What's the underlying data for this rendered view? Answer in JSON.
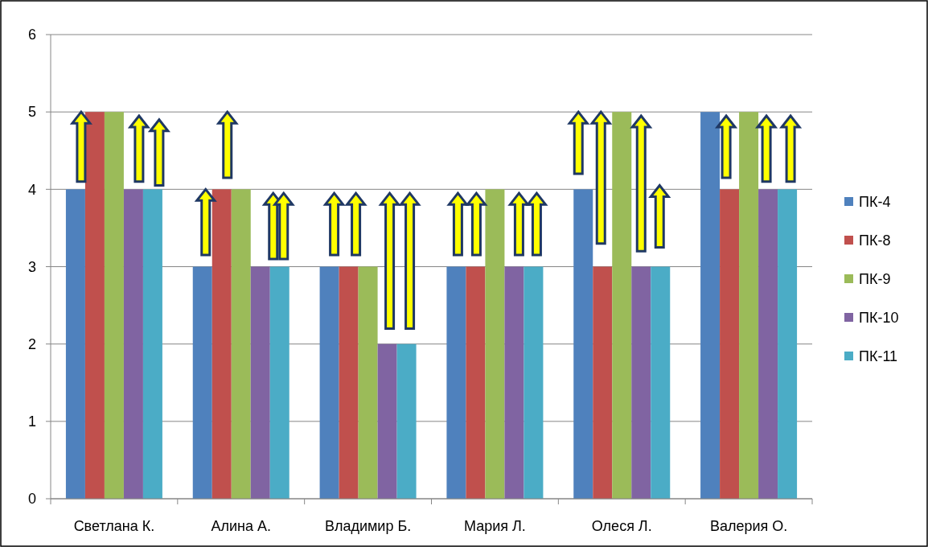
{
  "chart_data": {
    "type": "bar",
    "categories": [
      "Светлана К.",
      "Алина А.",
      "Владимир Б.",
      "Мария Л.",
      "Олеся Л.",
      "Валерия О."
    ],
    "series": [
      {
        "name": "ПК-4",
        "color": "#4f81bd",
        "values": [
          4,
          3,
          3,
          3,
          4,
          5
        ]
      },
      {
        "name": "ПК-8",
        "color": "#c0504d",
        "values": [
          5,
          4,
          3,
          3,
          3,
          4
        ]
      },
      {
        "name": "ПК-9",
        "color": "#9bbb59",
        "values": [
          5,
          4,
          3,
          4,
          5,
          5
        ]
      },
      {
        "name": "ПК-10",
        "color": "#8064a2",
        "values": [
          4,
          3,
          2,
          3,
          3,
          4
        ]
      },
      {
        "name": "ПК-11",
        "color": "#4bacc6",
        "values": [
          4,
          3,
          2,
          3,
          3,
          4
        ]
      }
    ],
    "ylim": [
      0,
      6
    ],
    "yticks": [
      0,
      1,
      2,
      3,
      4,
      5,
      6
    ],
    "grid": "y",
    "legend": "right"
  }
}
